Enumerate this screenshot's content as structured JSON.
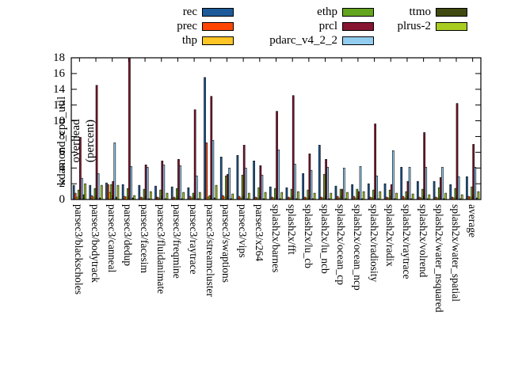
{
  "chart_data": {
    "type": "bar",
    "title": "",
    "ylabel_line1": "kdamond_cpu_util overhead",
    "ylabel_line2": "(percent)",
    "xlabel": "",
    "ylim": [
      0,
      18
    ],
    "ytick_step": 2,
    "grid": false,
    "legend_position": "top, 3 columns, swatch right of label",
    "legend_columns": [
      [
        "rec",
        "prec",
        "thp"
      ],
      [
        "ethp",
        "prcl",
        "pdarc_v4_2_2"
      ],
      [
        "ttmo",
        "plrus-2"
      ]
    ],
    "categories": [
      "parsec3/blackscholes",
      "parsec3/bodytrack",
      "parsec3/canneal",
      "parsec3/dedup",
      "parsec3/facesim",
      "parsec3/fluidanimate",
      "parsec3/freqmine",
      "parsec3/raytrace",
      "parsec3/streamcluster",
      "parsec3/swaptions",
      "parsec3/vips",
      "parsec3/x264",
      "splash2x/barnes",
      "splash2x/fft",
      "splash2x/lu_cb",
      "splash2x/lu_ncb",
      "splash2x/ocean_cp",
      "splash2x/ocean_ncp",
      "splash2x/radiosity",
      "splash2x/radix",
      "splash2x/raytrace",
      "splash2x/volrend",
      "splash2x/water_nsquared",
      "splash2x/water_spatial",
      "average"
    ],
    "series": [
      {
        "name": "rec",
        "color": "#1c5a99",
        "values": [
          1.8,
          1.8,
          2.1,
          1.9,
          1.8,
          1.7,
          1.6,
          1.5,
          15.5,
          5.4,
          5.6,
          4.9,
          1.6,
          1.5,
          3.3,
          6.9,
          1.7,
          1.9,
          2.0,
          2.0,
          4.1,
          2.3,
          2.3,
          1.9,
          2.9
        ]
      },
      {
        "name": "prec",
        "color": "#ff4500",
        "values": [
          0.8,
          0.5,
          1.9,
          0.4,
          0.3,
          0.3,
          0.3,
          0.4,
          7.2,
          0.5,
          0.4,
          0.3,
          0.3,
          0.3,
          0.3,
          0.3,
          0.4,
          0.4,
          0.3,
          0.3,
          0.4,
          0.3,
          0.3,
          0.3,
          0.4
        ]
      },
      {
        "name": "thp",
        "color": "#ffc425",
        "values": [
          0.3,
          0.3,
          0.9,
          0.3,
          0.2,
          0.2,
          0.2,
          0.2,
          0.3,
          0.3,
          0.2,
          0.2,
          0.2,
          0.2,
          0.2,
          0.2,
          0.2,
          0.2,
          0.2,
          0.2,
          0.2,
          0.2,
          0.2,
          0.2,
          0.3
        ]
      },
      {
        "name": "ethp",
        "color": "#63a51f",
        "values": [
          1.2,
          1.4,
          1.9,
          1.4,
          1.3,
          1.2,
          1.4,
          0.8,
          0.5,
          3.0,
          3.1,
          1.5,
          1.4,
          1.3,
          1.2,
          3.2,
          1.3,
          1.3,
          1.2,
          1.2,
          1.0,
          1.3,
          1.5,
          1.4,
          1.6
        ]
      },
      {
        "name": "prcl",
        "color": "#871430",
        "values": [
          7.9,
          14.5,
          2.3,
          18.0,
          4.4,
          4.9,
          5.1,
          11.4,
          13.1,
          3.2,
          6.9,
          4.3,
          11.2,
          13.2,
          5.8,
          5.1,
          1.3,
          1.0,
          9.6,
          1.9,
          2.3,
          8.5,
          2.8,
          12.2,
          7.0
        ]
      },
      {
        "name": "pdarc_v4_2_2",
        "color": "#92cdf0",
        "values": [
          2.7,
          3.3,
          7.2,
          4.2,
          4.1,
          4.4,
          4.3,
          3.0,
          7.5,
          4.0,
          4.0,
          3.1,
          6.3,
          4.5,
          3.7,
          4.1,
          4.0,
          4.2,
          3.0,
          6.2,
          4.1,
          4.1,
          4.1,
          2.9,
          4.1
        ]
      },
      {
        "name": "ttmo",
        "color": "#404a10",
        "values": [
          0.6,
          0.2,
          0.3,
          0.2,
          0.1,
          0.1,
          0.1,
          0.1,
          0.2,
          0.1,
          0.1,
          0.1,
          0.1,
          0.1,
          0.1,
          0.1,
          0.1,
          0.1,
          0.1,
          0.1,
          0.1,
          0.1,
          0.1,
          0.1,
          0.2
        ]
      },
      {
        "name": "plrus-2",
        "color": "#a8cc20",
        "values": [
          2.0,
          1.8,
          1.8,
          0.5,
          1.0,
          0.8,
          0.9,
          0.9,
          1.8,
          0.7,
          0.8,
          0.9,
          0.9,
          1.0,
          0.8,
          0.8,
          0.9,
          1.0,
          1.0,
          0.8,
          0.7,
          0.6,
          0.8,
          0.6,
          1.0
        ]
      }
    ],
    "ytick_labels": [
      "0",
      "2",
      "4",
      "6",
      "8",
      "10",
      "12",
      "14",
      "16",
      "18"
    ]
  }
}
